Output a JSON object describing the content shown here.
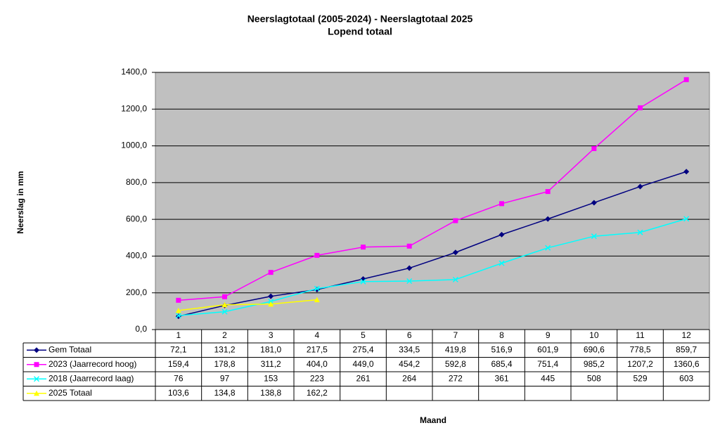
{
  "chart_data": {
    "type": "line",
    "title": "Neerslagtotaal (2005-2024)  - Neerslagtotaal 2025",
    "subtitle": "Lopend totaal",
    "y_label": "Neerslag in mm",
    "x_label": "Maand",
    "categories": [
      "1",
      "2",
      "3",
      "4",
      "5",
      "6",
      "7",
      "8",
      "9",
      "10",
      "11",
      "12"
    ],
    "ylim": [
      0,
      1400
    ],
    "yticks": [
      {
        "value": 0,
        "label": "0,0"
      },
      {
        "value": 200,
        "label": "200,0"
      },
      {
        "value": 400,
        "label": "400,0"
      },
      {
        "value": 600,
        "label": "600,0"
      },
      {
        "value": 800,
        "label": "800,0"
      },
      {
        "value": 1000,
        "label": "1000,0"
      },
      {
        "value": 1200,
        "label": "1200,0"
      },
      {
        "value": 1400,
        "label": "1400,0"
      }
    ],
    "grid": true,
    "plot_background": "#c0c0c0",
    "series": [
      {
        "name": "Gem Totaal",
        "color": "#000080",
        "marker": "diamond",
        "values": [
          72.1,
          131.2,
          181.0,
          217.5,
          275.4,
          334.5,
          419.8,
          516.9,
          601.9,
          690.6,
          778.5,
          859.7
        ],
        "value_labels": [
          "72,1",
          "131,2",
          "181,0",
          "217,5",
          "275,4",
          "334,5",
          "419,8",
          "516,9",
          "601,9",
          "690,6",
          "778,5",
          "859,7"
        ]
      },
      {
        "name": "2023 (Jaarrecord hoog)",
        "color": "#ff00ff",
        "marker": "square",
        "values": [
          159.4,
          178.8,
          311.2,
          404.0,
          449.0,
          454.2,
          592.8,
          685.4,
          751.4,
          985.2,
          1207.2,
          1360.6
        ],
        "value_labels": [
          "159,4",
          "178,8",
          "311,2",
          "404,0",
          "449,0",
          "454,2",
          "592,8",
          "685,4",
          "751,4",
          "985,2",
          "1207,2",
          "1360,6"
        ]
      },
      {
        "name": "2018 (Jaarrecord laag)",
        "color": "#00ffff",
        "marker": "x",
        "values": [
          76,
          97,
          153,
          223,
          261,
          264,
          272,
          361,
          445,
          508,
          529,
          603
        ]
      },
      {
        "name": "2025 Totaal",
        "color": "#ffff00",
        "marker": "triangle",
        "values": [
          103.6,
          134.8,
          138.8,
          162.2,
          null,
          null,
          null,
          null,
          null,
          null,
          null,
          null
        ],
        "value_labels": [
          "103,6",
          "134,8",
          "138,8",
          "162,2",
          null,
          null,
          null,
          null,
          null,
          null,
          null,
          null
        ]
      }
    ]
  }
}
